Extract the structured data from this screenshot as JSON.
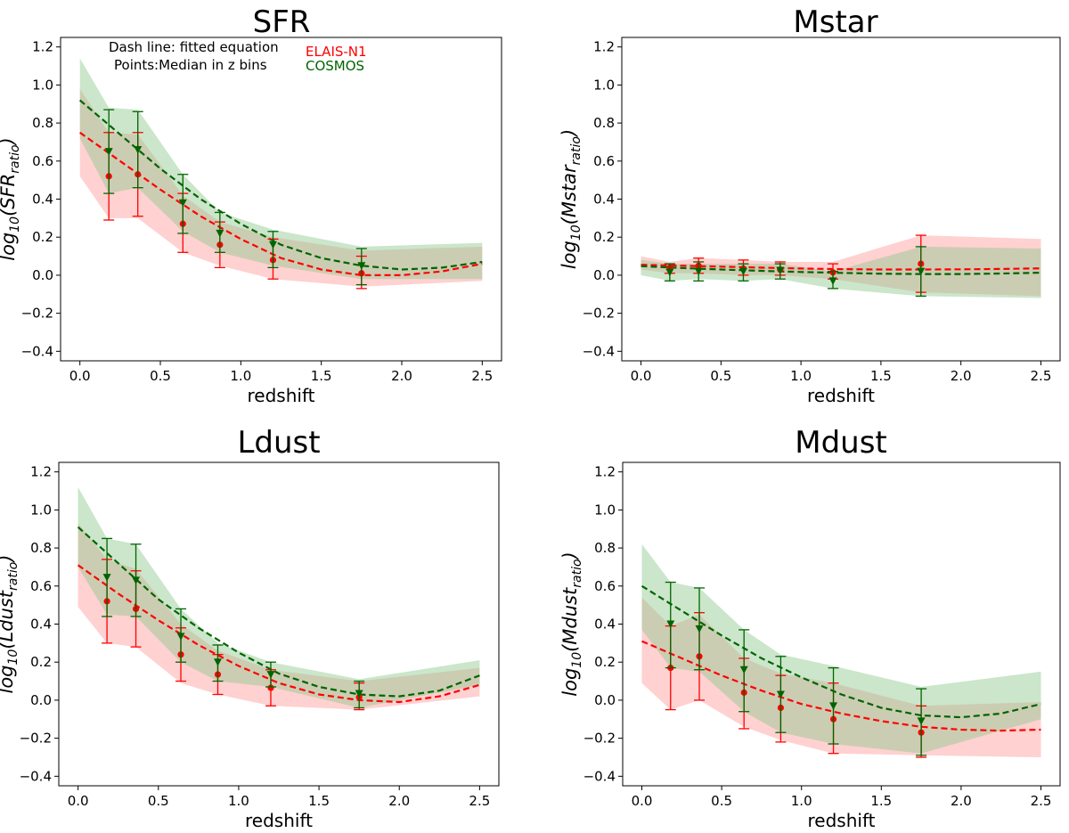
{
  "chart_data": [
    {
      "type": "line",
      "title": "SFR",
      "xlabel": "redshift",
      "ylabel_base": "log",
      "ylabel_base_sub": "10",
      "ylabel_quantity": "SFR",
      "ylabel_sub": "ratio",
      "xlim": [
        -0.12,
        2.62
      ],
      "ylim": [
        -0.45,
        1.25
      ],
      "xticks": [
        "0.0",
        "0.5",
        "1.0",
        "1.5",
        "2.0",
        "2.5"
      ],
      "xtick_values": [
        0,
        0.5,
        1.0,
        1.5,
        2.0,
        2.5
      ],
      "yticks": [
        "−0.4",
        "−0.2",
        "0.0",
        "0.2",
        "0.4",
        "0.6",
        "0.8",
        "1.0",
        "1.2"
      ],
      "ytick_values": [
        -0.4,
        -0.2,
        0,
        0.2,
        0.4,
        0.6,
        0.8,
        1.0,
        1.2
      ],
      "annotation": [
        "Dash line: fitted equation",
        "Points:Median in z bins"
      ],
      "legend": [
        "ELAIS-N1",
        "COSMOS"
      ],
      "series": [
        {
          "name": "ELAIS-N1",
          "color": "#ff0000",
          "band_color": "#ff9a9a",
          "marker": "circle",
          "band_x": [
            0,
            0.18,
            0.36,
            0.64,
            0.87,
            1.2,
            1.75,
            2.5
          ],
          "band_low": [
            0.52,
            0.3,
            0.3,
            0.12,
            0.05,
            -0.02,
            -0.06,
            -0.03
          ],
          "band_high": [
            0.98,
            0.75,
            0.74,
            0.42,
            0.28,
            0.2,
            0.13,
            0.15
          ],
          "fit_x": [
            0,
            0.25,
            0.5,
            0.75,
            1.0,
            1.25,
            1.5,
            1.75,
            2.0,
            2.25,
            2.5
          ],
          "fit_y": [
            0.75,
            0.6,
            0.45,
            0.31,
            0.19,
            0.09,
            0.03,
            0.0,
            0.0,
            0.02,
            0.06
          ],
          "points_x": [
            0.18,
            0.36,
            0.64,
            0.87,
            1.2,
            1.75
          ],
          "points_y": [
            0.52,
            0.53,
            0.27,
            0.16,
            0.08,
            0.01
          ],
          "err_low": [
            0.29,
            0.31,
            0.12,
            0.04,
            -0.02,
            -0.07
          ],
          "err_high": [
            0.75,
            0.75,
            0.43,
            0.28,
            0.19,
            0.1
          ]
        },
        {
          "name": "COSMOS",
          "color": "#006400",
          "band_color": "#8cc88c",
          "marker": "triangle_down",
          "band_x": [
            0,
            0.18,
            0.36,
            0.64,
            0.87,
            1.2,
            1.75,
            2.5
          ],
          "band_low": [
            0.72,
            0.43,
            0.46,
            0.23,
            0.12,
            0.05,
            -0.02,
            -0.02
          ],
          "band_high": [
            1.14,
            0.88,
            0.87,
            0.53,
            0.33,
            0.24,
            0.15,
            0.17
          ],
          "fit_x": [
            0,
            0.25,
            0.5,
            0.75,
            1.0,
            1.25,
            1.5,
            1.75,
            2.0,
            2.25,
            2.5
          ],
          "fit_y": [
            0.92,
            0.74,
            0.56,
            0.4,
            0.27,
            0.16,
            0.09,
            0.05,
            0.03,
            0.04,
            0.07
          ],
          "points_x": [
            0.18,
            0.36,
            0.64,
            0.87,
            1.2,
            1.75
          ],
          "points_y": [
            0.65,
            0.66,
            0.38,
            0.22,
            0.16,
            0.05
          ],
          "err_low": [
            0.43,
            0.46,
            0.22,
            0.12,
            0.04,
            -0.05
          ],
          "err_high": [
            0.87,
            0.86,
            0.53,
            0.33,
            0.23,
            0.14
          ]
        }
      ]
    },
    {
      "type": "line",
      "title": "Mstar",
      "xlabel": "redshift",
      "ylabel_base": "log",
      "ylabel_base_sub": "10",
      "ylabel_quantity": "Mstar",
      "ylabel_sub": "ratio",
      "xlim": [
        -0.12,
        2.62
      ],
      "ylim": [
        -0.45,
        1.25
      ],
      "xticks": [
        "0.0",
        "0.5",
        "1.0",
        "1.5",
        "2.0",
        "2.5"
      ],
      "xtick_values": [
        0,
        0.5,
        1.0,
        1.5,
        2.0,
        2.5
      ],
      "yticks": [
        "−0.4",
        "−0.2",
        "0.0",
        "0.2",
        "0.4",
        "0.6",
        "0.8",
        "1.0",
        "1.2"
      ],
      "ytick_values": [
        -0.4,
        -0.2,
        0,
        0.2,
        0.4,
        0.6,
        0.8,
        1.0,
        1.2
      ],
      "series": [
        {
          "name": "ELAIS-N1",
          "color": "#ff0000",
          "band_color": "#ff9a9a",
          "marker": "circle",
          "band_x": [
            0,
            0.18,
            0.36,
            0.64,
            0.87,
            1.2,
            1.75,
            2.5
          ],
          "band_low": [
            0.03,
            0.01,
            0.01,
            0.0,
            0.0,
            -0.02,
            -0.09,
            -0.11
          ],
          "band_high": [
            0.1,
            0.07,
            0.09,
            0.08,
            0.07,
            0.07,
            0.21,
            0.19
          ],
          "fit_x": [
            0,
            0.25,
            0.5,
            0.75,
            1.0,
            1.25,
            1.5,
            1.75,
            2.0,
            2.25,
            2.5
          ],
          "fit_y": [
            0.055,
            0.05,
            0.045,
            0.04,
            0.035,
            0.032,
            0.03,
            0.03,
            0.031,
            0.033,
            0.036
          ],
          "points_x": [
            0.18,
            0.36,
            0.64,
            0.87,
            1.2,
            1.75
          ],
          "points_y": [
            0.04,
            0.05,
            0.035,
            0.03,
            0.015,
            0.06
          ],
          "err_low": [
            0.01,
            0.01,
            0.0,
            0.0,
            -0.02,
            -0.09
          ],
          "err_high": [
            0.06,
            0.09,
            0.08,
            0.07,
            0.06,
            0.21
          ]
        },
        {
          "name": "COSMOS",
          "color": "#006400",
          "band_color": "#8cc88c",
          "marker": "triangle_down",
          "band_x": [
            0,
            0.18,
            0.36,
            0.64,
            0.87,
            1.2,
            1.75,
            2.5
          ],
          "band_low": [
            0.0,
            -0.03,
            -0.02,
            -0.03,
            -0.02,
            -0.07,
            -0.11,
            -0.12
          ],
          "band_high": [
            0.08,
            0.06,
            0.06,
            0.06,
            0.06,
            0.02,
            0.15,
            0.14
          ],
          "fit_x": [
            0,
            0.25,
            0.5,
            0.75,
            1.0,
            1.25,
            1.5,
            1.75,
            2.0,
            2.25,
            2.5
          ],
          "fit_y": [
            0.048,
            0.038,
            0.03,
            0.023,
            0.017,
            0.012,
            0.008,
            0.006,
            0.006,
            0.009,
            0.013
          ],
          "points_x": [
            0.18,
            0.36,
            0.64,
            0.87,
            1.2,
            1.75
          ],
          "points_y": [
            0.015,
            0.02,
            0.02,
            0.025,
            -0.03,
            0.02
          ],
          "err_low": [
            -0.03,
            -0.03,
            -0.03,
            -0.02,
            -0.07,
            -0.11
          ],
          "err_high": [
            0.06,
            0.07,
            0.06,
            0.06,
            0.02,
            0.15
          ]
        }
      ]
    },
    {
      "type": "line",
      "title": "Ldust",
      "xlabel": "redshift",
      "ylabel_base": "log",
      "ylabel_base_sub": "10",
      "ylabel_quantity": "Ldust",
      "ylabel_sub": "ratio",
      "xlim": [
        -0.12,
        2.62
      ],
      "ylim": [
        -0.45,
        1.25
      ],
      "xticks": [
        "0.0",
        "0.5",
        "1.0",
        "1.5",
        "2.0",
        "2.5"
      ],
      "xtick_values": [
        0,
        0.5,
        1.0,
        1.5,
        2.0,
        2.5
      ],
      "yticks": [
        "−0.4",
        "−0.2",
        "0.0",
        "0.2",
        "0.4",
        "0.6",
        "0.8",
        "1.0",
        "1.2"
      ],
      "ytick_values": [
        -0.4,
        -0.2,
        0,
        0.2,
        0.4,
        0.6,
        0.8,
        1.0,
        1.2
      ],
      "series": [
        {
          "name": "ELAIS-N1",
          "color": "#ff0000",
          "band_color": "#ff9a9a",
          "marker": "circle",
          "band_x": [
            0,
            0.18,
            0.36,
            0.64,
            0.87,
            1.2,
            1.75,
            2.5
          ],
          "band_low": [
            0.49,
            0.3,
            0.28,
            0.09,
            0.03,
            -0.03,
            -0.05,
            0.02
          ],
          "band_high": [
            0.93,
            0.74,
            0.69,
            0.4,
            0.26,
            0.16,
            0.1,
            0.17
          ],
          "fit_x": [
            0,
            0.25,
            0.5,
            0.75,
            1.0,
            1.25,
            1.5,
            1.75,
            2.0,
            2.25,
            2.5
          ],
          "fit_y": [
            0.71,
            0.56,
            0.42,
            0.29,
            0.18,
            0.09,
            0.03,
            0.0,
            -0.01,
            0.02,
            0.08
          ],
          "points_x": [
            0.18,
            0.36,
            0.64,
            0.87,
            1.2,
            1.75
          ],
          "points_y": [
            0.52,
            0.48,
            0.24,
            0.135,
            0.065,
            0.015
          ],
          "err_low": [
            0.3,
            0.28,
            0.1,
            0.03,
            -0.03,
            -0.05
          ],
          "err_high": [
            0.74,
            0.68,
            0.38,
            0.24,
            0.16,
            0.09
          ]
        },
        {
          "name": "COSMOS",
          "color": "#006400",
          "band_color": "#8cc88c",
          "marker": "triangle_down",
          "band_x": [
            0,
            0.18,
            0.36,
            0.64,
            0.87,
            1.2,
            1.75,
            2.5
          ],
          "band_low": [
            0.7,
            0.45,
            0.44,
            0.2,
            0.1,
            0.07,
            -0.04,
            0.08
          ],
          "band_high": [
            1.12,
            0.85,
            0.82,
            0.48,
            0.3,
            0.2,
            0.11,
            0.21
          ],
          "fit_x": [
            0,
            0.25,
            0.5,
            0.75,
            1.0,
            1.25,
            1.5,
            1.75,
            2.0,
            2.25,
            2.5
          ],
          "fit_y": [
            0.91,
            0.72,
            0.53,
            0.38,
            0.25,
            0.14,
            0.07,
            0.03,
            0.02,
            0.05,
            0.13
          ],
          "points_x": [
            0.18,
            0.36,
            0.64,
            0.87,
            1.2,
            1.75
          ],
          "points_y": [
            0.645,
            0.63,
            0.335,
            0.2,
            0.135,
            0.035
          ],
          "err_low": [
            0.44,
            0.44,
            0.2,
            0.1,
            0.07,
            -0.04
          ],
          "err_high": [
            0.85,
            0.82,
            0.48,
            0.29,
            0.2,
            0.1
          ]
        }
      ]
    },
    {
      "type": "line",
      "title": "Mdust",
      "xlabel": "redshift",
      "ylabel_base": "log",
      "ylabel_base_sub": "10",
      "ylabel_quantity": "Mdust",
      "ylabel_sub": "ratio",
      "xlim": [
        -0.12,
        2.62
      ],
      "ylim": [
        -0.45,
        1.25
      ],
      "xticks": [
        "0.0",
        "0.5",
        "1.0",
        "1.5",
        "2.0",
        "2.5"
      ],
      "xtick_values": [
        0,
        0.5,
        1.0,
        1.5,
        2.0,
        2.5
      ],
      "yticks": [
        "−0.4",
        "−0.2",
        "0.0",
        "0.2",
        "0.4",
        "0.6",
        "0.8",
        "1.0",
        "1.2"
      ],
      "ytick_values": [
        -0.4,
        -0.2,
        0,
        0.2,
        0.4,
        0.6,
        0.8,
        1.0,
        1.2
      ],
      "series": [
        {
          "name": "ELAIS-N1",
          "color": "#ff0000",
          "band_color": "#ff9a9a",
          "marker": "circle",
          "band_x": [
            0,
            0.18,
            0.36,
            0.64,
            0.87,
            1.2,
            1.75,
            2.5
          ],
          "band_low": [
            0.09,
            -0.05,
            0.0,
            -0.14,
            -0.21,
            -0.28,
            -0.29,
            -0.3
          ],
          "band_high": [
            0.54,
            0.39,
            0.45,
            0.22,
            0.14,
            0.09,
            -0.03,
            -0.01
          ],
          "fit_x": [
            0,
            0.25,
            0.5,
            0.75,
            1.0,
            1.25,
            1.5,
            1.75,
            2.0,
            2.25,
            2.5
          ],
          "fit_y": [
            0.31,
            0.22,
            0.13,
            0.05,
            -0.02,
            -0.07,
            -0.11,
            -0.14,
            -0.155,
            -0.16,
            -0.155
          ],
          "points_x": [
            0.18,
            0.36,
            0.64,
            0.87,
            1.2,
            1.75
          ],
          "points_y": [
            0.17,
            0.23,
            0.04,
            -0.04,
            -0.1,
            -0.17
          ],
          "err_low": [
            -0.05,
            0.0,
            -0.15,
            -0.22,
            -0.28,
            -0.3
          ],
          "err_high": [
            0.39,
            0.46,
            0.22,
            0.13,
            0.09,
            -0.03
          ]
        },
        {
          "name": "COSMOS",
          "color": "#006400",
          "band_color": "#8cc88c",
          "marker": "triangle_down",
          "band_x": [
            0,
            0.18,
            0.36,
            0.64,
            0.87,
            1.2,
            1.75,
            2.5
          ],
          "band_low": [
            0.37,
            0.17,
            0.15,
            -0.06,
            -0.17,
            -0.23,
            -0.28,
            -0.1
          ],
          "band_high": [
            0.82,
            0.62,
            0.59,
            0.37,
            0.24,
            0.18,
            0.07,
            0.15
          ],
          "fit_x": [
            0,
            0.25,
            0.5,
            0.75,
            1.0,
            1.25,
            1.5,
            1.75,
            2.0,
            2.25,
            2.5
          ],
          "fit_y": [
            0.6,
            0.47,
            0.34,
            0.22,
            0.12,
            0.03,
            -0.04,
            -0.08,
            -0.09,
            -0.07,
            -0.02
          ],
          "points_x": [
            0.18,
            0.36,
            0.64,
            0.87,
            1.2,
            1.75
          ],
          "points_y": [
            0.4,
            0.375,
            0.16,
            0.03,
            -0.03,
            -0.11
          ],
          "err_low": [
            0.17,
            0.16,
            -0.06,
            -0.17,
            -0.23,
            -0.29
          ],
          "err_high": [
            0.62,
            0.59,
            0.37,
            0.23,
            0.17,
            0.06
          ]
        }
      ]
    }
  ]
}
